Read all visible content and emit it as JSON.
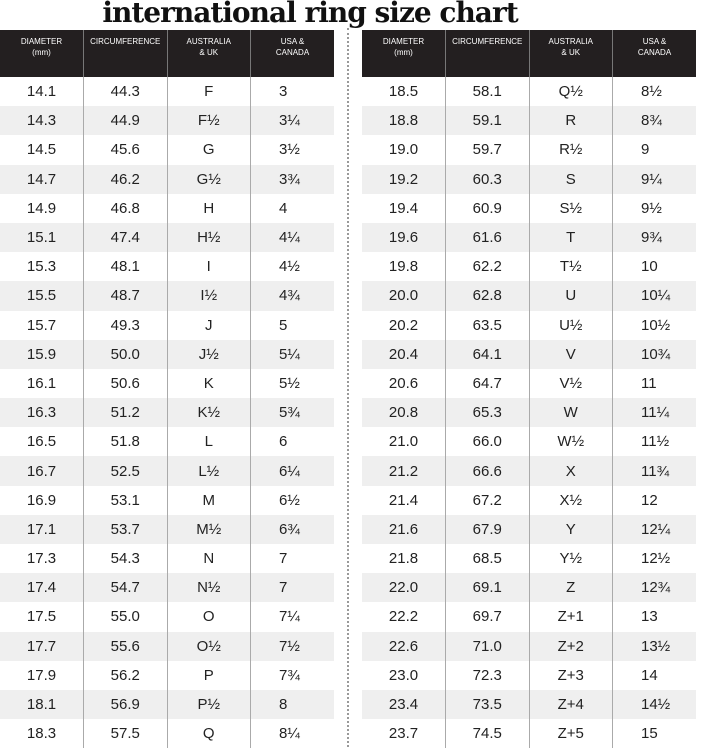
{
  "title": "international ring size chart",
  "headers": [
    "DIAMETER (mm)",
    "CIRCUMFERENCE",
    "AUSTRALIA & UK",
    "USA & CANADA"
  ],
  "left_rows": [
    [
      "14.1",
      "44.3",
      "F",
      "3"
    ],
    [
      "14.3",
      "44.9",
      "F½",
      "3¼"
    ],
    [
      "14.5",
      "45.6",
      "G",
      "3½"
    ],
    [
      "14.7",
      "46.2",
      "G½",
      "3¾"
    ],
    [
      "14.9",
      "46.8",
      "H",
      "4"
    ],
    [
      "15.1",
      "47.4",
      "H½",
      "4¼"
    ],
    [
      "15.3",
      "48.1",
      "I",
      "4½"
    ],
    [
      "15.5",
      "48.7",
      "I½",
      "4¾"
    ],
    [
      "15.7",
      "49.3",
      "J",
      "5"
    ],
    [
      "15.9",
      "50.0",
      "J½",
      "5¼"
    ],
    [
      "16.1",
      "50.6",
      "K",
      "5½"
    ],
    [
      "16.3",
      "51.2",
      "K½",
      "5¾"
    ],
    [
      "16.5",
      "51.8",
      "L",
      "6"
    ],
    [
      "16.7",
      "52.5",
      "L½",
      "6¼"
    ],
    [
      "16.9",
      "53.1",
      "M",
      "6½"
    ],
    [
      "17.1",
      "53.7",
      "M½",
      "6¾"
    ],
    [
      "17.3",
      "54.3",
      "N",
      "7"
    ],
    [
      "17.4",
      "54.7",
      "N½",
      "7"
    ],
    [
      "17.5",
      "55.0",
      "O",
      "7¼"
    ],
    [
      "17.7",
      "55.6",
      "O½",
      "7½"
    ],
    [
      "17.9",
      "56.2",
      "P",
      "7¾"
    ],
    [
      "18.1",
      "56.9",
      "P½",
      "8"
    ],
    [
      "18.3",
      "57.5",
      "Q",
      "8¼"
    ]
  ],
  "right_rows": [
    [
      "18.5",
      "58.1",
      "Q½",
      "8½"
    ],
    [
      "18.8",
      "59.1",
      "R",
      "8¾"
    ],
    [
      "19.0",
      "59.7",
      "R½",
      "9"
    ],
    [
      "19.2",
      "60.3",
      "S",
      "9¼"
    ],
    [
      "19.4",
      "60.9",
      "S½",
      "9½"
    ],
    [
      "19.6",
      "61.6",
      "T",
      "9¾"
    ],
    [
      "19.8",
      "62.2",
      "T½",
      "10"
    ],
    [
      "20.0",
      "62.8",
      "U",
      "10¼"
    ],
    [
      "20.2",
      "63.5",
      "U½",
      "10½"
    ],
    [
      "20.4",
      "64.1",
      "V",
      "10¾"
    ],
    [
      "20.6",
      "64.7",
      "V½",
      "11"
    ],
    [
      "20.8",
      "65.3",
      "W",
      "11¼"
    ],
    [
      "21.0",
      "66.0",
      "W½",
      "11½"
    ],
    [
      "21.2",
      "66.6",
      "X",
      "11¾"
    ],
    [
      "21.4",
      "67.2",
      "X½",
      "12"
    ],
    [
      "21.6",
      "67.9",
      "Y",
      "12¼"
    ],
    [
      "21.8",
      "68.5",
      "Y½",
      "12½"
    ],
    [
      "22.0",
      "69.1",
      "Z",
      "12¾"
    ],
    [
      "22.2",
      "69.7",
      "Z+1",
      "13"
    ],
    [
      "22.6",
      "71.0",
      "Z+2",
      "13½"
    ],
    [
      "23.0",
      "72.3",
      "Z+3",
      "14"
    ],
    [
      "23.4",
      "73.5",
      "Z+4",
      "14½"
    ],
    [
      "23.7",
      "74.5",
      "Z+5",
      "15"
    ]
  ]
}
